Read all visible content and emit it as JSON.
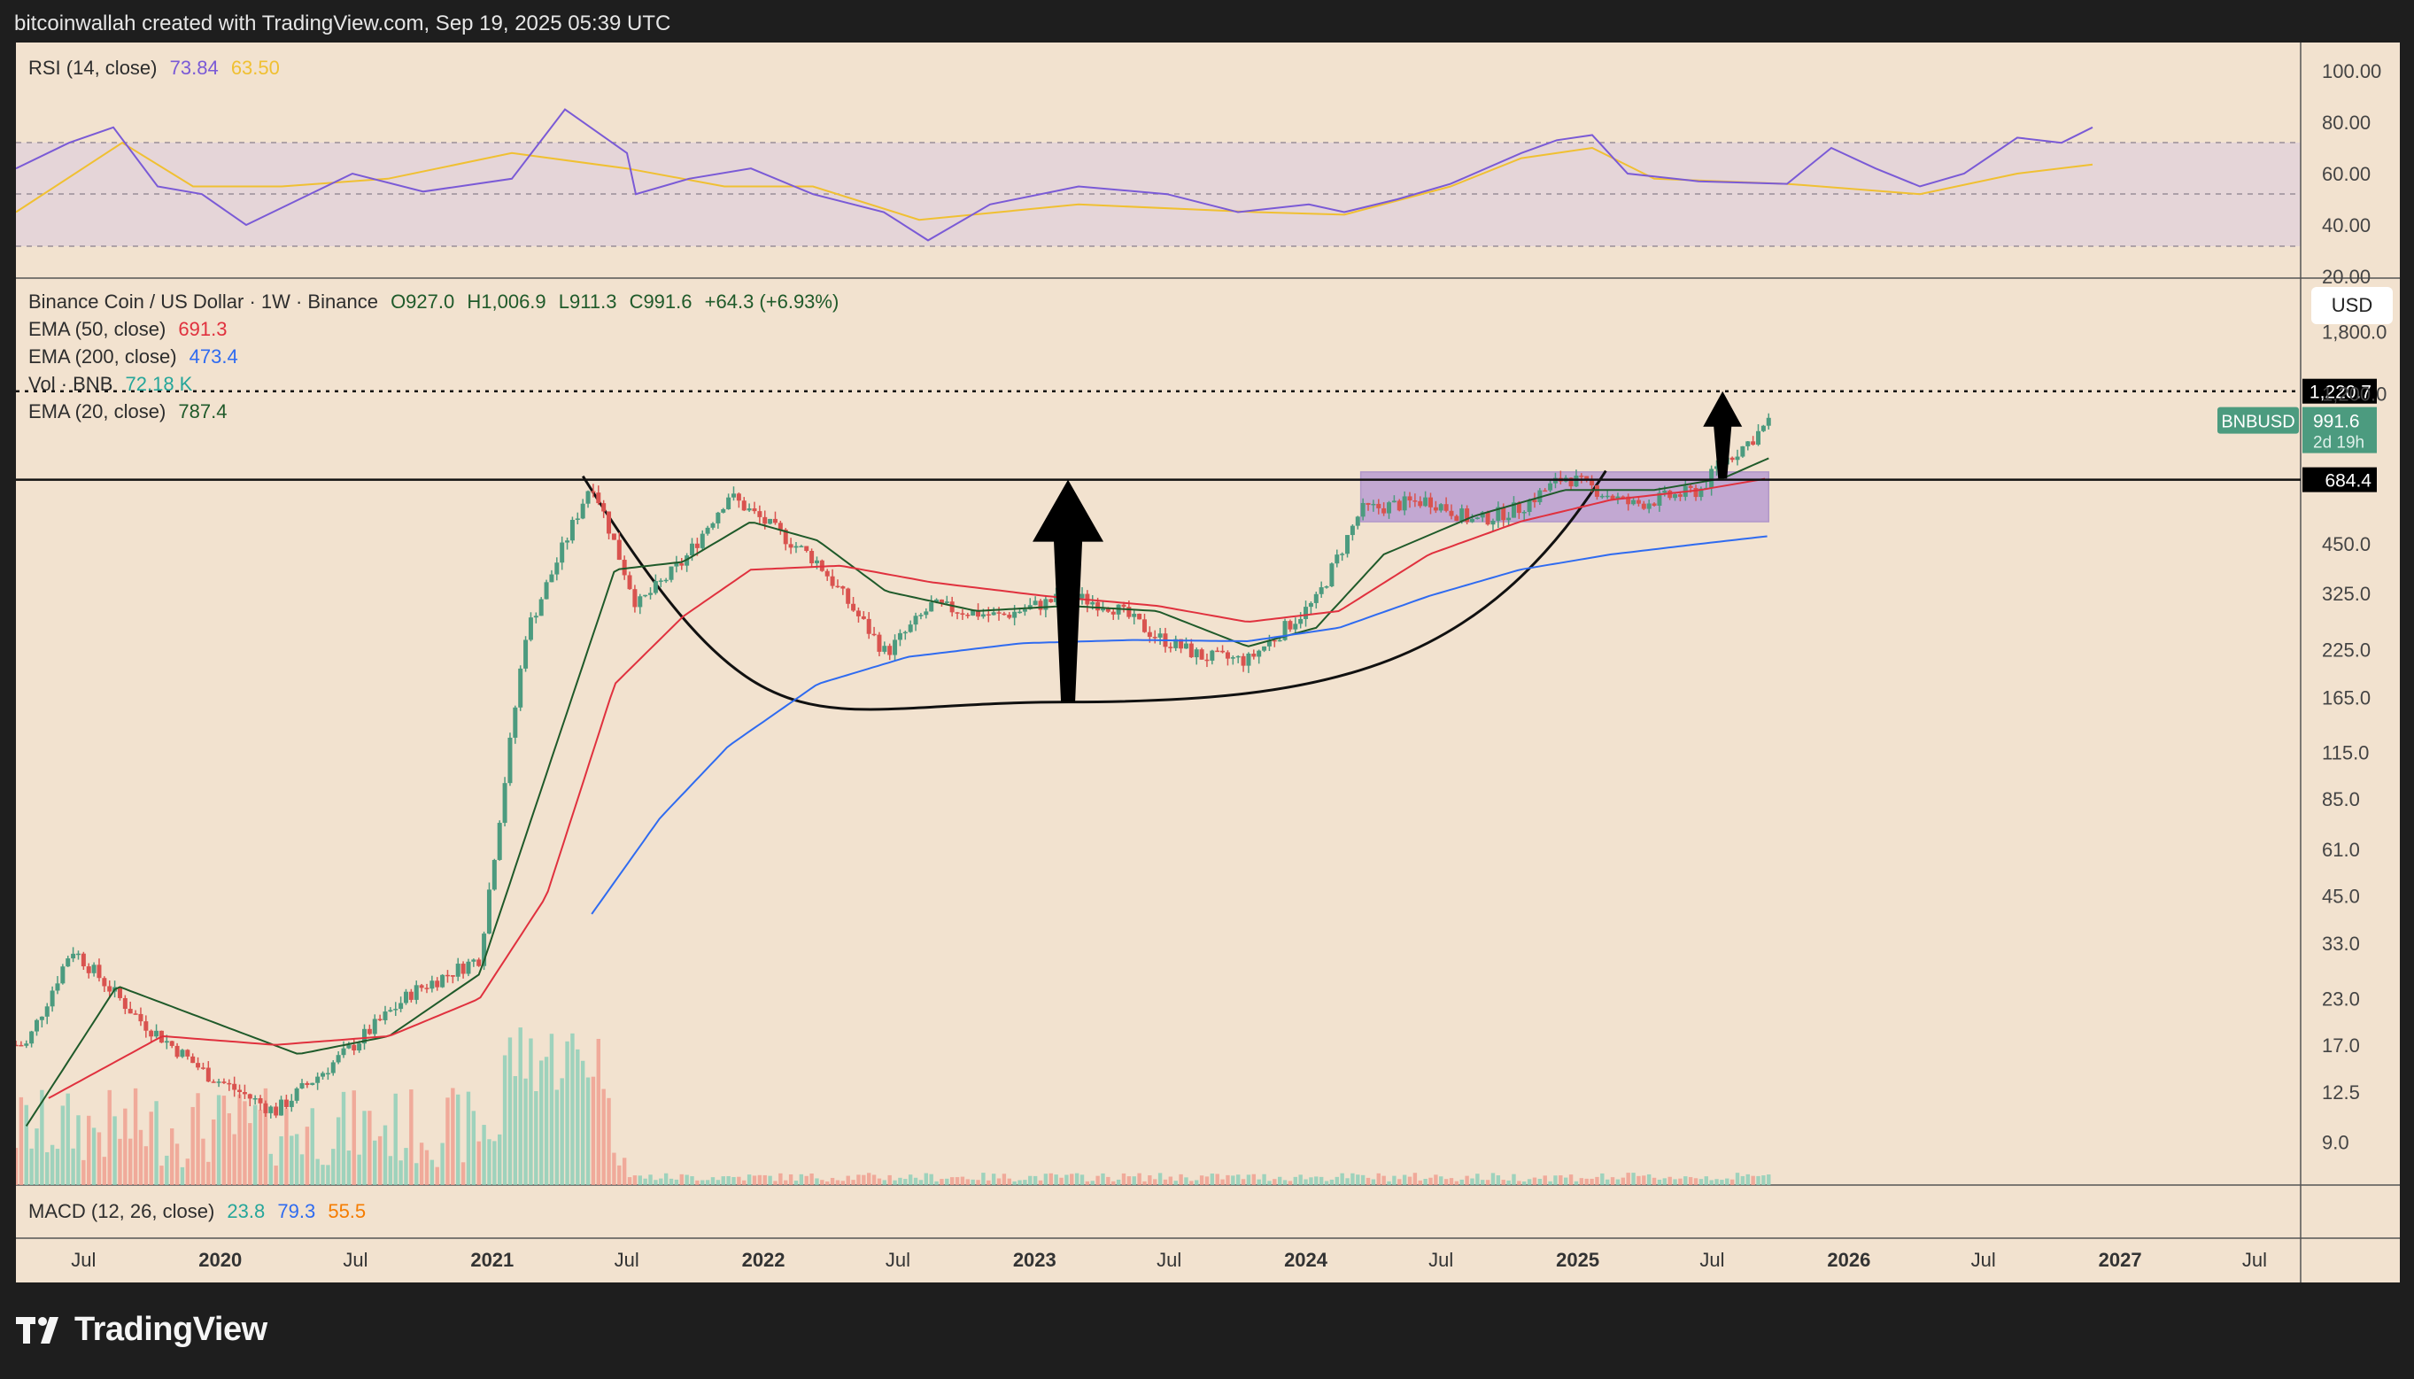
{
  "header": {
    "attribution": "bitcoinwallah created with TradingView.com, Sep 19, 2025 05:39 UTC"
  },
  "brand": {
    "logo_text": "TradingView"
  },
  "colors": {
    "background": "#f2e2cf",
    "bull": "#4c9b7f",
    "bear": "#d9534f",
    "rsi": "#7a5ad6",
    "rsi_ma": "#f0c032",
    "ema20": "#1f5a2a",
    "ema50": "#e0313e",
    "ema200": "#2f6bf0",
    "range_box": "#9c7ad6",
    "text": "#2d2d2d"
  },
  "rsi_panel": {
    "label": "RSI (14, close)",
    "value": "73.84",
    "ma_value": "63.50",
    "axis_labels": [
      "100.00",
      "80.00",
      "60.00",
      "40.00",
      "20.00"
    ]
  },
  "price_panel": {
    "title": "Binance Coin / US Dollar · 1W · Binance",
    "open": "O927.0",
    "high": "H1,006.9",
    "low": "L911.3",
    "close": "C991.6",
    "change": "+64.3 (+6.93%)",
    "currency": "USD",
    "indicators": [
      {
        "label": "EMA (50, close)",
        "value": "691.3",
        "color": "#e0313e"
      },
      {
        "label": "EMA (200, close)",
        "value": "473.4",
        "color": "#2f6bf0"
      },
      {
        "label": "Vol · BNB",
        "value": "72.18 K",
        "color": "#26a69a"
      },
      {
        "label": "EMA (20, close)",
        "value": "787.4",
        "color": "#1f5a2a"
      }
    ],
    "axis_labels": [
      "1,800.0",
      "1,200.0",
      "450.0",
      "325.0",
      "225.0",
      "165.0",
      "115.0",
      "85.0",
      "61.0",
      "45.0",
      "33.0",
      "23.0",
      "17.0",
      "12.5",
      "9.0"
    ],
    "target_label": "1,220.7",
    "symbol_tag": "BNBUSD",
    "price_tag": "991.6",
    "countdown": "2d 19h",
    "neckline_label": "684.4"
  },
  "macd_panel": {
    "label": "MACD (12, 26, close)",
    "macd": "23.8",
    "signal": "79.3",
    "histogram": "55.5"
  },
  "time_axis": [
    "Jul",
    "2020",
    "Jul",
    "2021",
    "Jul",
    "2022",
    "Jul",
    "2023",
    "Jul",
    "2024",
    "Jul",
    "2025",
    "Jul",
    "2026",
    "Jul",
    "2027",
    "Jul"
  ],
  "chart_data": {
    "type": "line",
    "title": "Binance Coin / US Dollar · 1W · Binance",
    "ylabel": "USD",
    "y_scale": "log",
    "ylim": [
      7,
      2100
    ],
    "x_range": [
      "2019-04-01",
      "2027-09-01"
    ],
    "series": [
      {
        "name": "BNBUSD",
        "type": "line",
        "x": [
          "2019-04",
          "2019-06",
          "2019-09",
          "2019-12",
          "2020-03",
          "2020-06",
          "2020-09",
          "2020-12",
          "2021-02",
          "2021-05",
          "2021-07",
          "2021-09",
          "2021-11",
          "2022-03",
          "2022-06",
          "2022-08",
          "2022-11",
          "2023-02",
          "2023-04",
          "2023-06",
          "2023-08",
          "2023-10",
          "2024-01",
          "2024-03",
          "2024-06",
          "2024-08",
          "2024-10",
          "2024-12",
          "2025-03",
          "2025-06",
          "2025-07",
          "2025-08",
          "2025-09"
        ],
        "y": [
          17,
          32,
          20,
          14,
          11,
          16,
          24,
          30,
          250,
          680,
          300,
          400,
          620,
          400,
          220,
          300,
          280,
          320,
          300,
          245,
          215,
          210,
          310,
          560,
          600,
          520,
          570,
          700,
          580,
          640,
          770,
          860,
          991.6
        ]
      },
      {
        "name": "EMA (20, close)",
        "type": "line",
        "x": [
          "2019-04",
          "2019-08",
          "2019-12",
          "2020-04",
          "2020-08",
          "2020-12",
          "2021-03",
          "2021-06",
          "2021-09",
          "2021-12",
          "2022-03",
          "2022-06",
          "2022-10",
          "2023-02",
          "2023-06",
          "2023-10",
          "2024-01",
          "2024-04",
          "2024-08",
          "2024-12",
          "2025-04",
          "2025-07",
          "2025-09"
        ],
        "y": [
          10,
          25,
          20,
          16,
          18,
          27,
          100,
          380,
          400,
          520,
          460,
          330,
          290,
          300,
          290,
          230,
          260,
          420,
          540,
          640,
          640,
          690,
          787.4
        ]
      },
      {
        "name": "EMA (50, close)",
        "type": "line",
        "x": [
          "2019-05",
          "2019-10",
          "2020-03",
          "2020-08",
          "2020-12",
          "2021-03",
          "2021-06",
          "2021-09",
          "2021-12",
          "2022-04",
          "2022-08",
          "2023-01",
          "2023-06",
          "2023-10",
          "2024-02",
          "2024-06",
          "2024-10",
          "2025-02",
          "2025-06",
          "2025-09"
        ],
        "y": [
          12,
          18,
          17,
          18,
          23,
          45,
          180,
          280,
          380,
          390,
          350,
          320,
          300,
          270,
          290,
          420,
          520,
          600,
          640,
          691.3
        ]
      },
      {
        "name": "EMA (200, close)",
        "type": "line",
        "x": [
          "2021-05",
          "2021-08",
          "2021-11",
          "2022-03",
          "2022-07",
          "2022-12",
          "2023-05",
          "2023-10",
          "2024-02",
          "2024-06",
          "2024-10",
          "2025-02",
          "2025-06",
          "2025-09"
        ],
        "y": [
          40,
          75,
          120,
          180,
          215,
          235,
          240,
          238,
          260,
          320,
          380,
          420,
          450,
          473.4
        ]
      }
    ],
    "annotations": [
      {
        "type": "hline",
        "y": 684.4,
        "label": "684.4"
      },
      {
        "type": "hline_dotted",
        "y": 1220.7,
        "label": "1,220.7"
      },
      {
        "type": "rounded_bottom",
        "from": "2021-05",
        "low": "2023-02",
        "to": "2025-01"
      },
      {
        "type": "arrow_up",
        "x": "2023-02",
        "from": 160,
        "to": 684.4
      },
      {
        "type": "arrow_up",
        "x": "2025-07",
        "from": 690,
        "to": 1220.7
      },
      {
        "type": "range_box",
        "x": [
          "2024-03",
          "2025-09"
        ],
        "y": [
          520,
          720
        ]
      }
    ]
  }
}
